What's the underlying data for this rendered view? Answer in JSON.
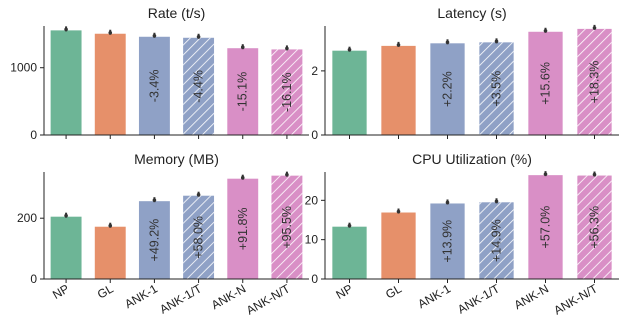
{
  "categories": [
    "NP",
    "GL",
    "ANK-1",
    "ANK-1/T",
    "ANK-N",
    "ANK-N/T"
  ],
  "colors": [
    "#6db596",
    "#e6906a",
    "#8fa1c6",
    "#8fa1c6",
    "#d98fc6",
    "#d98fc6"
  ],
  "hatched": [
    false,
    false,
    false,
    true,
    false,
    true
  ],
  "chart_data": [
    {
      "type": "bar",
      "title": "Rate (t/s)",
      "categories": [
        "NP",
        "GL",
        "ANK-1",
        "ANK-1/T",
        "ANK-N",
        "ANK-N/T"
      ],
      "values": [
        1555,
        1505,
        1460,
        1445,
        1290,
        1272
      ],
      "ylim": [
        0,
        1620
      ],
      "yticks": [
        0,
        1000
      ],
      "bar_labels": [
        "",
        "",
        "-3.4%",
        "-4.4%",
        "-15.1%",
        "-16.1%"
      ]
    },
    {
      "type": "bar",
      "title": "Latency (s)",
      "categories": [
        "NP",
        "GL",
        "ANK-1",
        "ANK-1/T",
        "ANK-N",
        "ANK-N/T"
      ],
      "values": [
        2.63,
        2.78,
        2.86,
        2.89,
        3.22,
        3.31
      ],
      "ylim": [
        0,
        3.4
      ],
      "yticks": [
        0,
        2
      ],
      "bar_labels": [
        "",
        "",
        "+2.2%",
        "+3.5%",
        "+15.6%",
        "+18.3%"
      ]
    },
    {
      "type": "bar",
      "title": "Memory (MB)",
      "categories": [
        "NP",
        "GL",
        "ANK-1",
        "ANK-1/T",
        "ANK-N",
        "ANK-N/T"
      ],
      "values": [
        205,
        172,
        256,
        274,
        330,
        340
      ],
      "ylim": [
        0,
        352
      ],
      "yticks": [
        0,
        200
      ],
      "bar_labels": [
        "",
        "",
        "+49.2%",
        "+58.0%",
        "+91.8%",
        "+95.5%"
      ]
    },
    {
      "type": "bar",
      "title": "CPU Utilization (%)",
      "categories": [
        "NP",
        "GL",
        "ANK-1",
        "ANK-1/T",
        "ANK-N",
        "ANK-N/T"
      ],
      "values": [
        13.3,
        16.9,
        19.2,
        19.5,
        26.4,
        26.3
      ],
      "ylim": [
        0,
        27.2
      ],
      "yticks": [
        0,
        10,
        20
      ],
      "bar_labels": [
        "",
        "",
        "+13.9%",
        "+14.9%",
        "+57.0%",
        "+56.3%"
      ]
    }
  ]
}
